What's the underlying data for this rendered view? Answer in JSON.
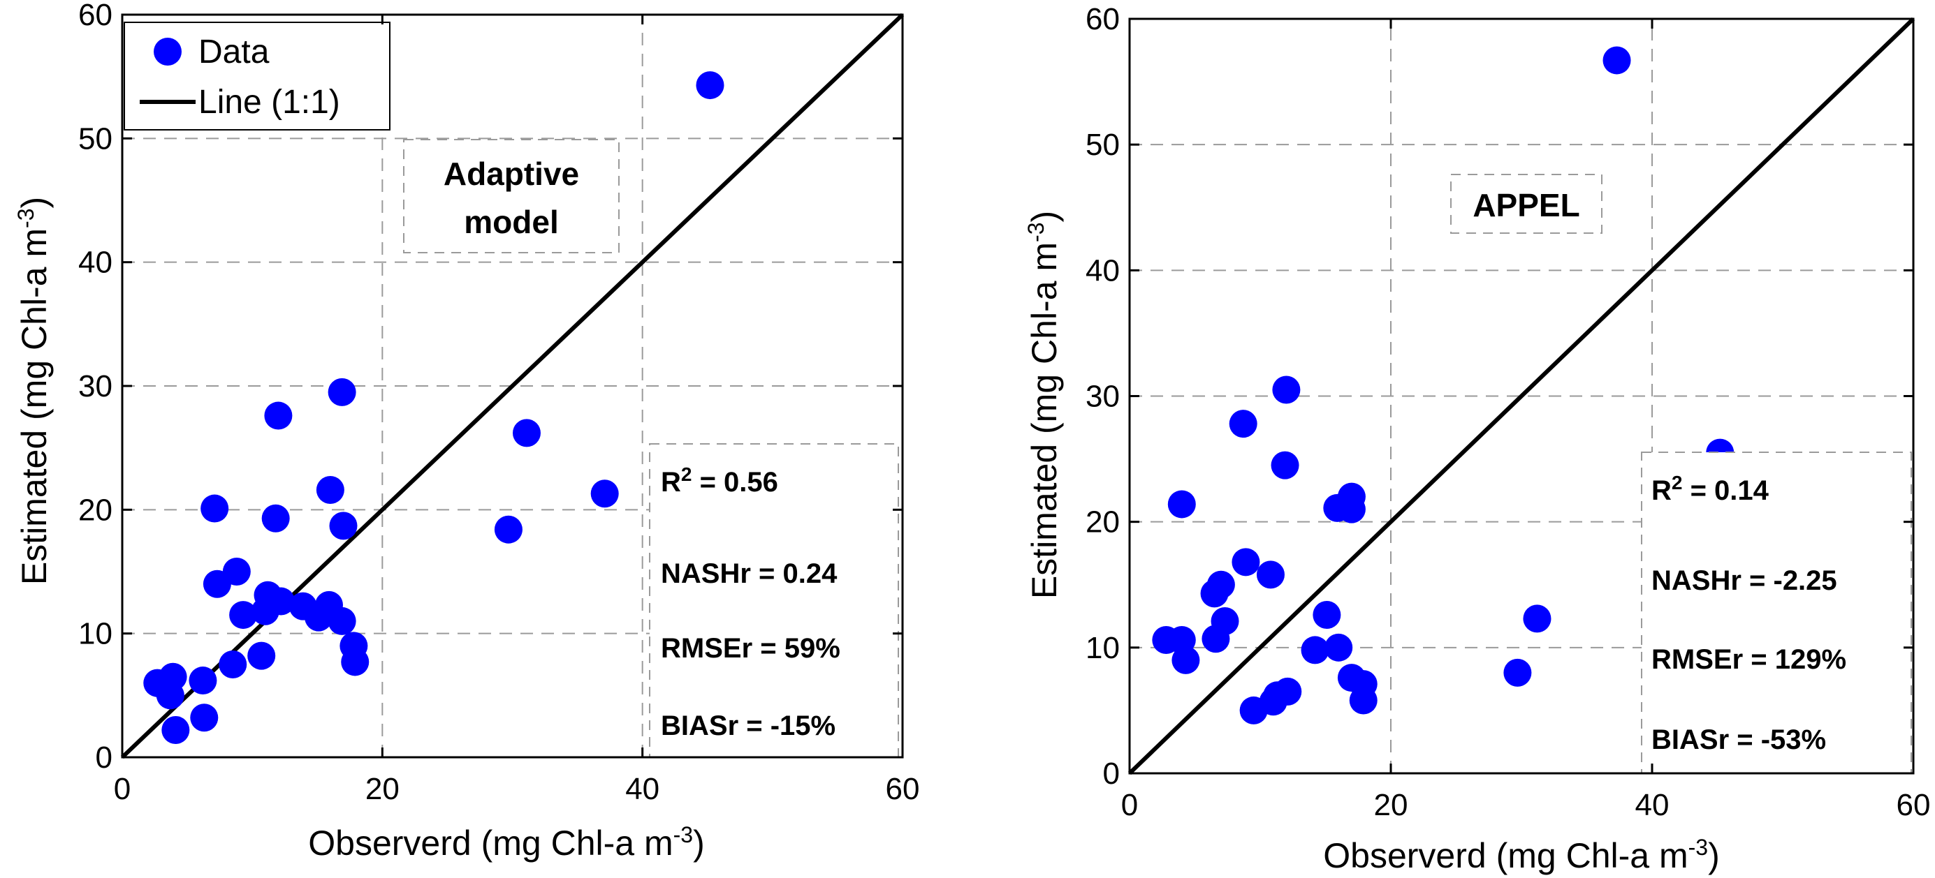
{
  "chart_data": [
    {
      "type": "scatter",
      "title": "Adaptive model",
      "title_lines": [
        "Adaptive",
        "model"
      ],
      "xlabel": "Observerd  (mg Chl-a m",
      "xlabel_sup": "-3",
      "xlabel_close": ")",
      "ylabel": "Estimated  (mg Chl-a m",
      "ylabel_sup": "-3",
      "ylabel_close": ")",
      "xlim": [
        0,
        60
      ],
      "ylim": [
        0,
        60
      ],
      "xticks": [
        "0",
        "20",
        "40",
        "60"
      ],
      "yticks": [
        "0",
        "10",
        "20",
        "30",
        "40",
        "50",
        "60"
      ],
      "grid": true,
      "legend": {
        "position": "top-left",
        "entries": [
          "Data",
          "Line (1:1)"
        ]
      },
      "line_1to1": [
        [
          0,
          0
        ],
        [
          60,
          60
        ]
      ],
      "stats": [
        {
          "label": "R",
          "sup": "2",
          "value": " = 0.56"
        },
        {
          "label": "NASHr",
          "sup": "",
          "value": " = 0.24"
        },
        {
          "label": "RMSEr",
          "sup": "",
          "value": " = 59%"
        },
        {
          "label": "BIASr",
          "sup": "",
          "value": " = -15%"
        }
      ],
      "series": [
        {
          "name": "Data",
          "color": "#0000ff",
          "points": [
            [
              2.7,
              6.0
            ],
            [
              3.5,
              5.5
            ],
            [
              3.9,
              6.5
            ],
            [
              3.7,
              5.0
            ],
            [
              4.1,
              2.2
            ],
            [
              6.2,
              6.2
            ],
            [
              6.3,
              3.2
            ],
            [
              7.1,
              20.1
            ],
            [
              7.3,
              14.0
            ],
            [
              8.5,
              7.5
            ],
            [
              8.8,
              15.0
            ],
            [
              9.3,
              11.5
            ],
            [
              10.7,
              8.2
            ],
            [
              11.0,
              11.8
            ],
            [
              11.2,
              13.1
            ],
            [
              11.8,
              19.3
            ],
            [
              12.0,
              27.6
            ],
            [
              12.2,
              12.6
            ],
            [
              13.9,
              12.2
            ],
            [
              15.1,
              11.3
            ],
            [
              15.9,
              12.3
            ],
            [
              16.0,
              21.6
            ],
            [
              16.9,
              11.0
            ],
            [
              16.9,
              29.5
            ],
            [
              17.0,
              18.7
            ],
            [
              17.8,
              9.0
            ],
            [
              17.9,
              7.7
            ],
            [
              29.7,
              18.4
            ],
            [
              31.1,
              26.2
            ],
            [
              37.1,
              21.3
            ],
            [
              45.2,
              54.3
            ]
          ]
        }
      ]
    },
    {
      "type": "scatter",
      "title": "APPEL",
      "title_lines": [
        "APPEL"
      ],
      "xlabel": "Observerd  (mg Chl-a m",
      "xlabel_sup": "-3",
      "xlabel_close": ")",
      "ylabel": "Estimated  (mg Chl-a m",
      "ylabel_sup": "-3",
      "ylabel_close": ")",
      "xlim": [
        0,
        60
      ],
      "ylim": [
        0,
        60
      ],
      "xticks": [
        "0",
        "20",
        "40",
        "60"
      ],
      "yticks": [
        "0",
        "10",
        "20",
        "30",
        "40",
        "50",
        "60"
      ],
      "grid": true,
      "line_1to1": [
        [
          0,
          0
        ],
        [
          60,
          60
        ]
      ],
      "stats": [
        {
          "label": "R",
          "sup": "2",
          "value": " = 0.14"
        },
        {
          "label": "NASHr",
          "sup": "",
          "value": " = -2.25"
        },
        {
          "label": "RMSEr",
          "sup": "",
          "value": " = 129%"
        },
        {
          "label": "BIASr",
          "sup": "",
          "value": " = -53%"
        }
      ],
      "series": [
        {
          "name": "Data",
          "color": "#0000ff",
          "points": [
            [
              2.8,
              10.6
            ],
            [
              4.0,
              21.4
            ],
            [
              4.0,
              10.6
            ],
            [
              4.3,
              9.0
            ],
            [
              6.5,
              14.3
            ],
            [
              6.6,
              10.7
            ],
            [
              7.0,
              15.0
            ],
            [
              7.3,
              12.1
            ],
            [
              8.7,
              27.8
            ],
            [
              8.9,
              16.8
            ],
            [
              9.5,
              5.0
            ],
            [
              10.8,
              15.8
            ],
            [
              11.0,
              5.7
            ],
            [
              11.3,
              6.2
            ],
            [
              11.9,
              24.5
            ],
            [
              12.0,
              30.5
            ],
            [
              12.1,
              6.5
            ],
            [
              14.2,
              9.8
            ],
            [
              15.1,
              12.6
            ],
            [
              15.9,
              21.1
            ],
            [
              16.0,
              10.0
            ],
            [
              17.0,
              22.0
            ],
            [
              17.0,
              21.0
            ],
            [
              17.0,
              7.6
            ],
            [
              17.9,
              7.1
            ],
            [
              17.9,
              5.8
            ],
            [
              29.7,
              8.0
            ],
            [
              31.2,
              12.3
            ],
            [
              37.3,
              56.7
            ],
            [
              45.2,
              25.5
            ]
          ]
        }
      ]
    }
  ]
}
